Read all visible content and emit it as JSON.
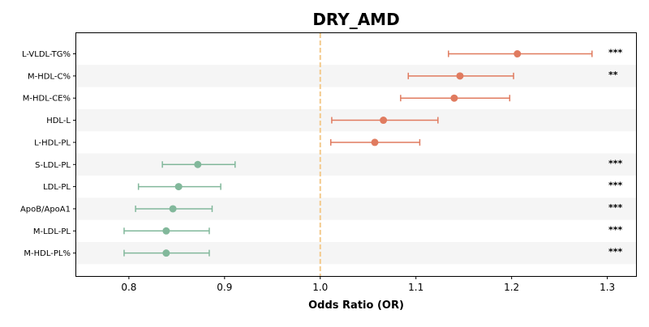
{
  "chart_data": {
    "type": "forest",
    "title": "DRY_AMD",
    "xlabel": "Odds Ratio (OR)",
    "ylabel": "",
    "xlim": [
      0.745,
      1.33
    ],
    "xticks": [
      0.8,
      0.9,
      1.0,
      1.1,
      1.2,
      1.3
    ],
    "xtick_labels": [
      "0.8",
      "0.9",
      "1.0",
      "1.1",
      "1.2",
      "1.3"
    ],
    "reference_line": 1.0,
    "reference_line_color": "#f3c98b",
    "colors": {
      "positive": "#e07b5f",
      "negative": "#82b89b",
      "band": "#f5f5f5"
    },
    "rows": [
      {
        "label": "L-VLDL-TG%",
        "or": 1.206,
        "lo": 1.134,
        "hi": 1.284,
        "sig": "***",
        "group": "positive"
      },
      {
        "label": "M-HDL-C%",
        "or": 1.146,
        "lo": 1.092,
        "hi": 1.202,
        "sig": "**",
        "group": "positive"
      },
      {
        "label": "M-HDL-CE%",
        "or": 1.14,
        "lo": 1.084,
        "hi": 1.198,
        "sig": "",
        "group": "positive"
      },
      {
        "label": "HDL-L",
        "or": 1.066,
        "lo": 1.012,
        "hi": 1.123,
        "sig": "",
        "group": "positive"
      },
      {
        "label": "L-HDL-PL",
        "or": 1.057,
        "lo": 1.011,
        "hi": 1.104,
        "sig": "",
        "group": "positive"
      },
      {
        "label": "S-LDL-PL",
        "or": 0.872,
        "lo": 0.835,
        "hi": 0.911,
        "sig": "***",
        "group": "negative"
      },
      {
        "label": "LDL-PL",
        "or": 0.852,
        "lo": 0.81,
        "hi": 0.896,
        "sig": "***",
        "group": "negative"
      },
      {
        "label": "ApoB/ApoA1",
        "or": 0.846,
        "lo": 0.807,
        "hi": 0.887,
        "sig": "***",
        "group": "negative"
      },
      {
        "label": "M-LDL-PL",
        "or": 0.839,
        "lo": 0.795,
        "hi": 0.884,
        "sig": "***",
        "group": "negative"
      },
      {
        "label": "M-HDL-PL%",
        "or": 0.839,
        "lo": 0.795,
        "hi": 0.884,
        "sig": "***",
        "group": "negative"
      }
    ]
  }
}
